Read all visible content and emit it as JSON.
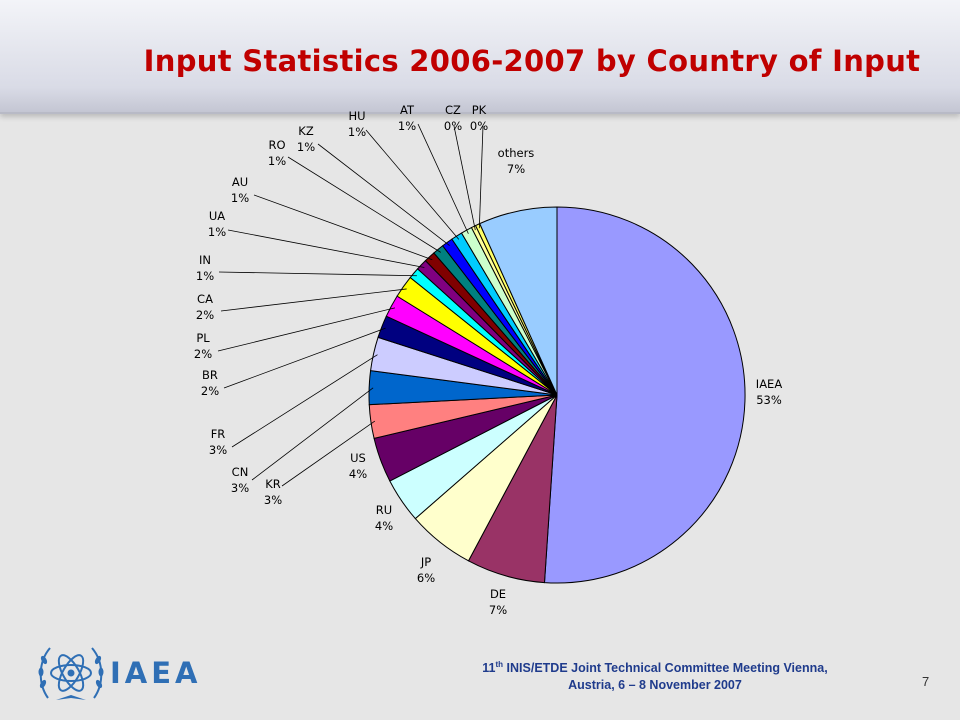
{
  "slide": {
    "title": "Input Statistics 2006-2007 by Country of Input",
    "footer": {
      "line1_pre": "11",
      "line1_sup": "th",
      "line1_post": " INIS/ETDE Joint Technical Committee Meeting Vienna,",
      "line2": "Austria, 6 – 8 November 2007"
    },
    "page_number": "7",
    "logo_text": "IAEA"
  },
  "chart_data": {
    "type": "pie",
    "title": "",
    "slices": [
      {
        "name": "IAEA",
        "value": 53,
        "label": "53%",
        "color": "#9999ff"
      },
      {
        "name": "DE",
        "value": 7,
        "label": "7%",
        "color": "#993366"
      },
      {
        "name": "JP",
        "value": 6,
        "label": "6%",
        "color": "#ffffcc"
      },
      {
        "name": "RU",
        "value": 4,
        "label": "4%",
        "color": "#ccffff"
      },
      {
        "name": "US",
        "value": 4,
        "label": "4%",
        "color": "#660066"
      },
      {
        "name": "KR",
        "value": 3,
        "label": "3%",
        "color": "#ff8080"
      },
      {
        "name": "CN",
        "value": 3,
        "label": "3%",
        "color": "#0066cc"
      },
      {
        "name": "FR",
        "value": 3,
        "label": "3%",
        "color": "#ccccff"
      },
      {
        "name": "BR",
        "value": 2,
        "label": "2%",
        "color": "#000080"
      },
      {
        "name": "PL",
        "value": 2,
        "label": "2%",
        "color": "#ff00ff"
      },
      {
        "name": "CA",
        "value": 2,
        "label": "2%",
        "color": "#ffff00"
      },
      {
        "name": "IN",
        "value": 1,
        "label": "1%",
        "color": "#00ffff"
      },
      {
        "name": "UA",
        "value": 1,
        "label": "1%",
        "color": "#800080"
      },
      {
        "name": "AU",
        "value": 1,
        "label": "1%",
        "color": "#800000"
      },
      {
        "name": "RO",
        "value": 1,
        "label": "1%",
        "color": "#008080"
      },
      {
        "name": "KZ",
        "value": 1,
        "label": "1%",
        "color": "#0000ff"
      },
      {
        "name": "HU",
        "value": 1,
        "label": "1%",
        "color": "#00ccff"
      },
      {
        "name": "AT",
        "value": 1,
        "label": "1%",
        "color": "#ccffcc"
      },
      {
        "name": "CZ",
        "value": 0.4,
        "label": "0%",
        "color": "#ffff99"
      },
      {
        "name": "PK",
        "value": 0.4,
        "label": "0%",
        "color": "#ffff66"
      },
      {
        "name": "others",
        "value": 7,
        "label": "7%",
        "color": "#99ccff"
      }
    ],
    "start_angle": "12 o'clock",
    "direction": "clockwise",
    "labels": "outside with leader lines"
  }
}
